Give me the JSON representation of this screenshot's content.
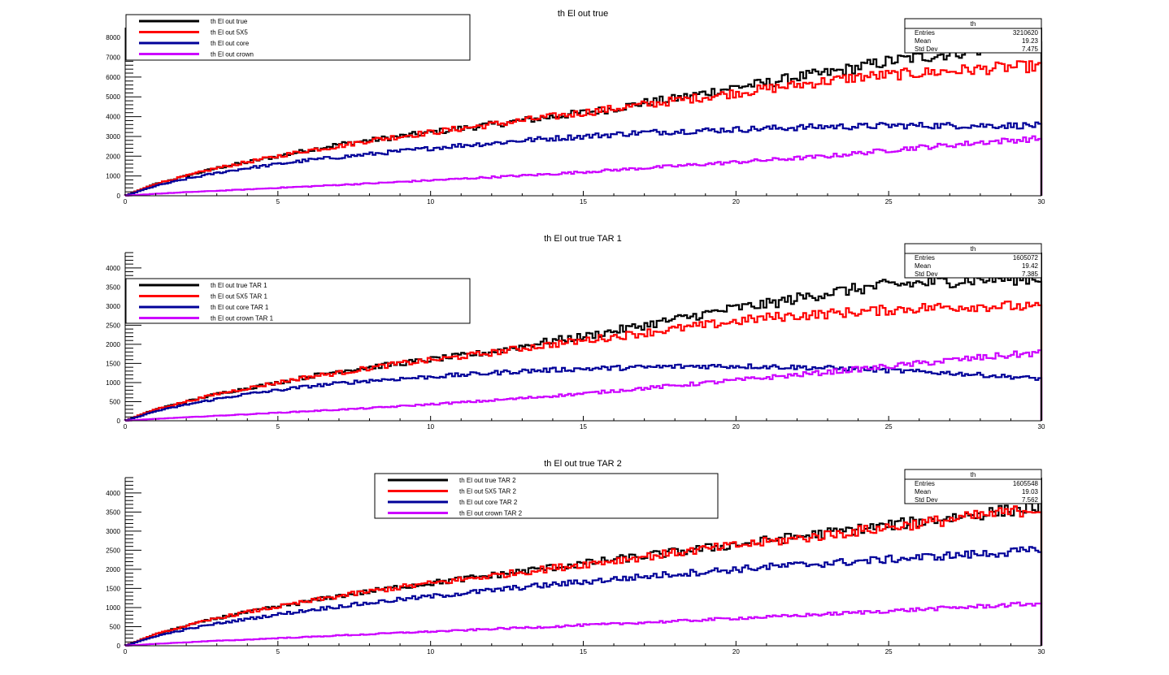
{
  "colors": {
    "true": "#000000",
    "5x5": "#ff0000",
    "core": "#000099",
    "crown": "#cc00ff",
    "frame": "#000000",
    "background": "#ffffff"
  },
  "chart_data": [
    {
      "type": "histogram",
      "title": "th El out true",
      "xlabel": "",
      "ylabel": "",
      "xlim": [
        0,
        30
      ],
      "ylim": [
        0,
        8500
      ],
      "xticks": [
        0,
        5,
        10,
        15,
        20,
        25,
        30
      ],
      "yticks": [
        0,
        1000,
        2000,
        3000,
        4000,
        5000,
        6000,
        7000,
        8000
      ],
      "grid": false,
      "legend_placement": "top-left",
      "legend": [
        "th El out true",
        "th El out 5X5",
        "th El out core",
        "th El out crown"
      ],
      "stats": {
        "name": "th",
        "labels": [
          "Entries",
          "Mean",
          "Std Dev"
        ],
        "values": [
          "3210620",
          "19.23",
          "7.475"
        ]
      },
      "series": [
        {
          "name": "th El out true",
          "color_key": "true",
          "x": [
            0,
            1,
            2,
            3,
            4,
            5,
            6,
            7,
            8,
            9,
            10,
            11,
            12,
            13,
            14,
            15,
            16,
            17,
            18,
            19,
            20,
            21,
            22,
            23,
            24,
            25,
            26,
            27,
            28,
            29,
            30
          ],
          "y": [
            0,
            600,
            1000,
            1400,
            1700,
            2000,
            2300,
            2600,
            2800,
            3000,
            3200,
            3400,
            3600,
            3800,
            4000,
            4200,
            4400,
            4700,
            4900,
            5200,
            5500,
            5700,
            6000,
            6200,
            6500,
            6800,
            7000,
            7200,
            7400,
            7600,
            7800
          ]
        },
        {
          "name": "th El out 5X5",
          "color_key": "5x5",
          "x": [
            0,
            1,
            2,
            3,
            4,
            5,
            6,
            7,
            8,
            9,
            10,
            11,
            12,
            13,
            14,
            15,
            16,
            17,
            18,
            19,
            20,
            21,
            22,
            23,
            24,
            25,
            26,
            27,
            28,
            29,
            30
          ],
          "y": [
            0,
            600,
            1000,
            1400,
            1700,
            2000,
            2300,
            2500,
            2800,
            3000,
            3200,
            3400,
            3600,
            3800,
            4000,
            4200,
            4400,
            4600,
            4800,
            5000,
            5200,
            5400,
            5600,
            5800,
            6000,
            6100,
            6200,
            6300,
            6400,
            6500,
            6550
          ]
        },
        {
          "name": "th El out core",
          "color_key": "core",
          "x": [
            0,
            1,
            2,
            3,
            4,
            5,
            6,
            7,
            8,
            9,
            10,
            11,
            12,
            13,
            14,
            15,
            16,
            17,
            18,
            19,
            20,
            21,
            22,
            23,
            24,
            25,
            26,
            27,
            28,
            29,
            30
          ],
          "y": [
            0,
            500,
            850,
            1150,
            1400,
            1600,
            1800,
            1950,
            2100,
            2250,
            2400,
            2550,
            2650,
            2800,
            2900,
            3000,
            3100,
            3200,
            3250,
            3300,
            3350,
            3400,
            3450,
            3500,
            3500,
            3550,
            3550,
            3550,
            3550,
            3550,
            3550
          ]
        },
        {
          "name": "th El out crown",
          "color_key": "crown",
          "x": [
            0,
            1,
            2,
            3,
            4,
            5,
            6,
            7,
            8,
            9,
            10,
            11,
            12,
            13,
            14,
            15,
            16,
            17,
            18,
            19,
            20,
            21,
            22,
            23,
            24,
            25,
            26,
            27,
            28,
            29,
            30
          ],
          "y": [
            0,
            100,
            180,
            250,
            320,
            400,
            470,
            550,
            620,
            700,
            780,
            860,
            940,
            1020,
            1100,
            1200,
            1300,
            1400,
            1500,
            1600,
            1700,
            1800,
            1900,
            2000,
            2150,
            2300,
            2450,
            2550,
            2700,
            2800,
            2900
          ]
        }
      ]
    },
    {
      "type": "histogram",
      "title": "th El out true TAR 1",
      "xlabel": "",
      "ylabel": "",
      "xlim": [
        0,
        30
      ],
      "ylim": [
        0,
        4400
      ],
      "xticks": [
        0,
        5,
        10,
        15,
        20,
        25,
        30
      ],
      "yticks": [
        0,
        500,
        1000,
        1500,
        2000,
        2500,
        3000,
        3500,
        4000
      ],
      "grid": false,
      "legend_placement": "left",
      "legend": [
        "th El out true TAR 1",
        "th El out 5X5 TAR 1",
        "th El out core TAR 1",
        "th El out crown TAR 1"
      ],
      "stats": {
        "name": "th",
        "labels": [
          "Entries",
          "Mean",
          "Std Dev"
        ],
        "values": [
          "1605072",
          "19.42",
          "7.385"
        ]
      },
      "series": [
        {
          "name": "th El out true TAR 1",
          "color_key": "true",
          "x": [
            0,
            1,
            2,
            3,
            4,
            5,
            6,
            7,
            8,
            9,
            10,
            11,
            12,
            13,
            14,
            15,
            16,
            17,
            18,
            19,
            20,
            21,
            22,
            23,
            24,
            25,
            26,
            27,
            28,
            29,
            30
          ],
          "y": [
            0,
            300,
            500,
            700,
            850,
            1000,
            1150,
            1300,
            1400,
            1500,
            1600,
            1700,
            1800,
            1950,
            2100,
            2200,
            2350,
            2500,
            2650,
            2800,
            2950,
            3050,
            3200,
            3350,
            3450,
            3550,
            3600,
            3650,
            3700,
            3720,
            3730
          ]
        },
        {
          "name": "th El out 5X5 TAR 1",
          "color_key": "5x5",
          "x": [
            0,
            1,
            2,
            3,
            4,
            5,
            6,
            7,
            8,
            9,
            10,
            11,
            12,
            13,
            14,
            15,
            16,
            17,
            18,
            19,
            20,
            21,
            22,
            23,
            24,
            25,
            26,
            27,
            28,
            29,
            30
          ],
          "y": [
            0,
            300,
            500,
            700,
            850,
            1000,
            1150,
            1250,
            1380,
            1500,
            1580,
            1680,
            1780,
            1900,
            2000,
            2100,
            2200,
            2300,
            2400,
            2500,
            2600,
            2700,
            2750,
            2800,
            2850,
            2900,
            2950,
            2980,
            3000,
            3000,
            2950
          ]
        },
        {
          "name": "th El out core TAR 1",
          "color_key": "core",
          "x": [
            0,
            1,
            2,
            3,
            4,
            5,
            6,
            7,
            8,
            9,
            10,
            11,
            12,
            13,
            14,
            15,
            16,
            17,
            18,
            19,
            20,
            21,
            22,
            23,
            24,
            25,
            26,
            27,
            28,
            29,
            30
          ],
          "y": [
            0,
            250,
            420,
            570,
            700,
            800,
            900,
            980,
            1050,
            1100,
            1150,
            1200,
            1250,
            1300,
            1330,
            1360,
            1380,
            1400,
            1420,
            1430,
            1430,
            1420,
            1400,
            1380,
            1350,
            1320,
            1280,
            1250,
            1200,
            1150,
            1100
          ]
        },
        {
          "name": "th El out crown TAR 1",
          "color_key": "crown",
          "x": [
            0,
            1,
            2,
            3,
            4,
            5,
            6,
            7,
            8,
            9,
            10,
            11,
            12,
            13,
            14,
            15,
            16,
            17,
            18,
            19,
            20,
            21,
            22,
            23,
            24,
            25,
            26,
            27,
            28,
            29,
            30
          ],
          "y": [
            0,
            50,
            90,
            130,
            170,
            210,
            250,
            290,
            330,
            380,
            430,
            480,
            530,
            590,
            650,
            710,
            780,
            850,
            920,
            990,
            1060,
            1130,
            1200,
            1270,
            1350,
            1420,
            1500,
            1580,
            1650,
            1720,
            1780
          ]
        }
      ]
    },
    {
      "type": "histogram",
      "title": "th El out true TAR 2",
      "xlabel": "",
      "ylabel": "",
      "xlim": [
        0,
        30
      ],
      "ylim": [
        0,
        4400
      ],
      "xticks": [
        0,
        5,
        10,
        15,
        20,
        25,
        30
      ],
      "yticks": [
        0,
        500,
        1000,
        1500,
        2000,
        2500,
        3000,
        3500,
        4000
      ],
      "grid": false,
      "legend_placement": "top-center",
      "legend": [
        "th El out true TAR 2",
        "th El out 5X5 TAR 2",
        "th El out core TAR 2",
        "th El out crown TAR 2"
      ],
      "stats": {
        "name": "th",
        "labels": [
          "Entries",
          "Mean",
          "Std Dev"
        ],
        "values": [
          "1605548",
          "19.03",
          "7.562"
        ]
      },
      "series": [
        {
          "name": "th El out true TAR 2",
          "color_key": "true",
          "x": [
            0,
            1,
            2,
            3,
            4,
            5,
            6,
            7,
            8,
            9,
            10,
            11,
            12,
            13,
            14,
            15,
            16,
            17,
            18,
            19,
            20,
            21,
            22,
            23,
            24,
            25,
            26,
            27,
            28,
            29,
            30
          ],
          "y": [
            0,
            300,
            520,
            720,
            880,
            1020,
            1160,
            1300,
            1420,
            1540,
            1640,
            1740,
            1840,
            1950,
            2050,
            2150,
            2250,
            2350,
            2450,
            2550,
            2650,
            2750,
            2850,
            2950,
            3050,
            3150,
            3250,
            3350,
            3450,
            3550,
            3650
          ]
        },
        {
          "name": "th El out 5X5 TAR 2",
          "color_key": "5x5",
          "x": [
            0,
            1,
            2,
            3,
            4,
            5,
            6,
            7,
            8,
            9,
            10,
            11,
            12,
            13,
            14,
            15,
            16,
            17,
            18,
            19,
            20,
            21,
            22,
            23,
            24,
            25,
            26,
            27,
            28,
            29,
            30
          ],
          "y": [
            0,
            300,
            520,
            720,
            880,
            1020,
            1160,
            1300,
            1420,
            1530,
            1630,
            1730,
            1830,
            1930,
            2030,
            2130,
            2230,
            2330,
            2430,
            2530,
            2620,
            2710,
            2800,
            2900,
            3000,
            3100,
            3200,
            3300,
            3400,
            3500,
            3600
          ]
        },
        {
          "name": "th El out core TAR 2",
          "color_key": "core",
          "x": [
            0,
            1,
            2,
            3,
            4,
            5,
            6,
            7,
            8,
            9,
            10,
            11,
            12,
            13,
            14,
            15,
            16,
            17,
            18,
            19,
            20,
            21,
            22,
            23,
            24,
            25,
            26,
            27,
            28,
            29,
            30
          ],
          "y": [
            0,
            250,
            430,
            580,
            700,
            820,
            930,
            1030,
            1120,
            1210,
            1290,
            1370,
            1450,
            1530,
            1600,
            1670,
            1740,
            1810,
            1880,
            1940,
            2000,
            2060,
            2110,
            2160,
            2210,
            2260,
            2310,
            2360,
            2400,
            2450,
            2500
          ]
        },
        {
          "name": "th El out crown TAR 2",
          "color_key": "crown",
          "x": [
            0,
            1,
            2,
            3,
            4,
            5,
            6,
            7,
            8,
            9,
            10,
            11,
            12,
            13,
            14,
            15,
            16,
            17,
            18,
            19,
            20,
            21,
            22,
            23,
            24,
            25,
            26,
            27,
            28,
            29,
            30
          ],
          "y": [
            0,
            50,
            90,
            130,
            160,
            200,
            230,
            270,
            300,
            340,
            370,
            400,
            440,
            470,
            500,
            540,
            570,
            610,
            640,
            680,
            720,
            750,
            790,
            830,
            870,
            910,
            950,
            990,
            1030,
            1070,
            1110
          ]
        }
      ]
    }
  ]
}
